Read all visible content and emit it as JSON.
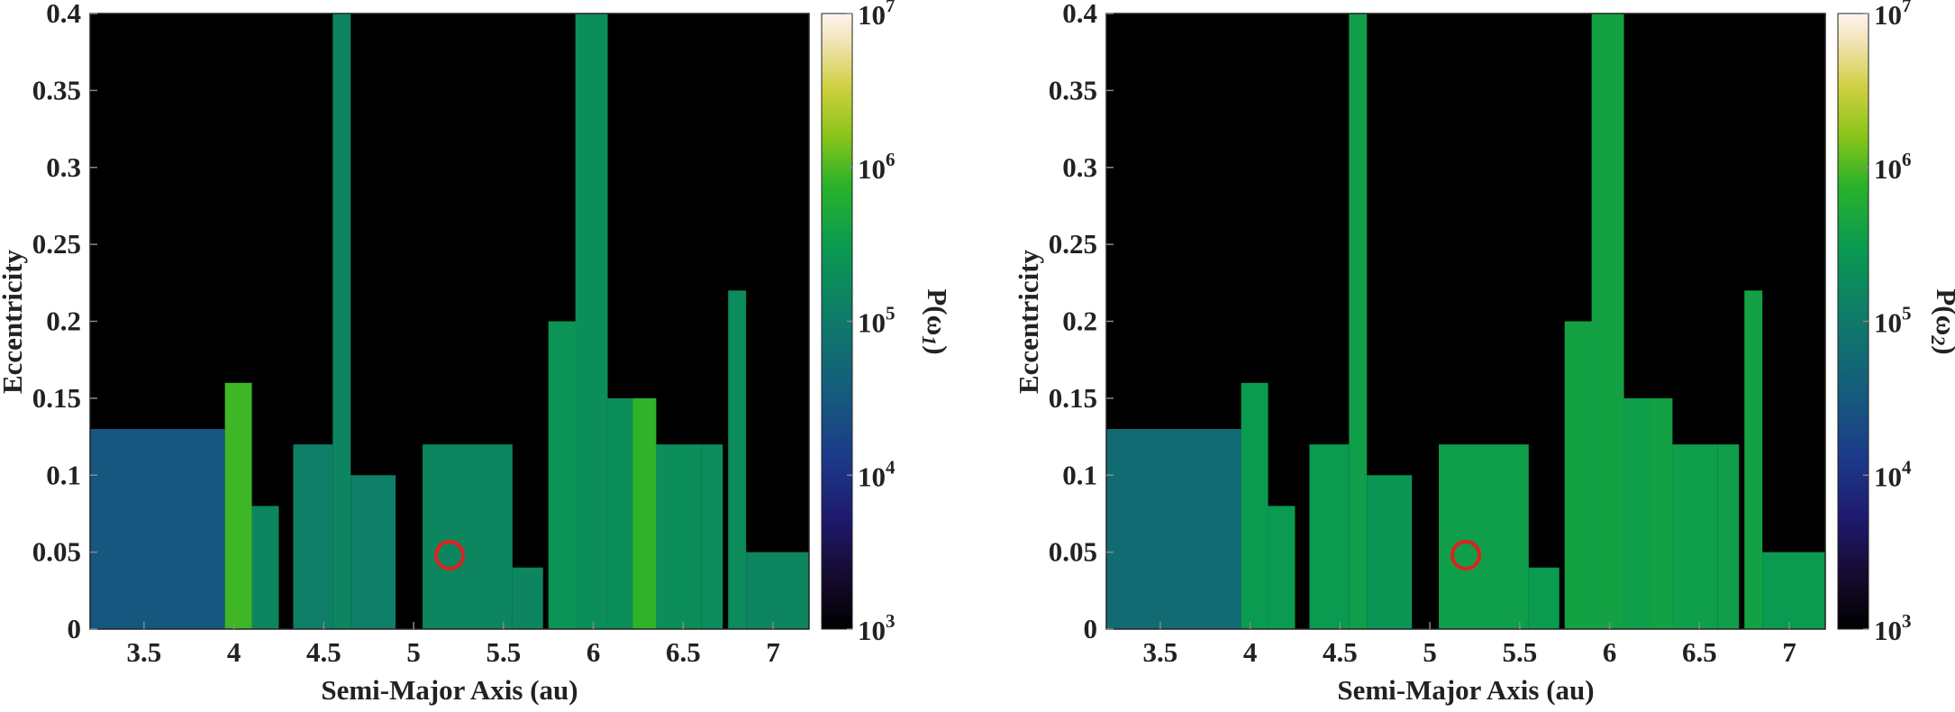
{
  "chart_data": [
    {
      "type": "heatmap",
      "xlabel": "Semi-Major Axis (au)",
      "ylabel": "Eccentricity",
      "xlim": [
        3.2,
        7.2
      ],
      "ylim": [
        0,
        0.4
      ],
      "xticks": [
        "3.5",
        "4",
        "4.5",
        "5",
        "5.5",
        "6",
        "6.5",
        "7"
      ],
      "xtick_values": [
        3.5,
        4,
        4.5,
        5,
        5.5,
        6,
        6.5,
        7
      ],
      "yticks": [
        "0",
        "0.05",
        "0.1",
        "0.15",
        "0.2",
        "0.25",
        "0.3",
        "0.35",
        "0.4"
      ],
      "ytick_values": [
        0,
        0.05,
        0.1,
        0.15,
        0.2,
        0.25,
        0.3,
        0.35,
        0.4
      ],
      "colorbar": {
        "label": "P(ω1)",
        "label_base": "P(ω",
        "label_sub": "1",
        "label_end": ")",
        "scale": "log",
        "range": [
          1000,
          10000000
        ],
        "ticks": [
          {
            "base": "10",
            "exp": "3",
            "value": 1000
          },
          {
            "base": "10",
            "exp": "4",
            "value": 10000
          },
          {
            "base": "10",
            "exp": "5",
            "value": 100000
          },
          {
            "base": "10",
            "exp": "6",
            "value": 1000000
          },
          {
            "base": "10",
            "exp": "7",
            "value": 10000000
          }
        ]
      },
      "marker": {
        "a": 5.2,
        "e": 0.048,
        "shape": "circle",
        "color": "#e02020"
      },
      "background_color": "#000000",
      "regions": [
        {
          "a0": 3.2,
          "a1": 3.95,
          "e_max": 0.13,
          "value": 30000
        },
        {
          "a0": 3.95,
          "a1": 4.1,
          "e_max": 0.16,
          "value": 900000
        },
        {
          "a0": 4.1,
          "a1": 4.25,
          "e_max": 0.08,
          "value": 150000
        },
        {
          "a0": 4.33,
          "a1": 4.55,
          "e_max": 0.12,
          "value": 120000
        },
        {
          "a0": 4.55,
          "a1": 4.65,
          "e_max": 0.4,
          "value": 150000
        },
        {
          "a0": 4.65,
          "a1": 4.9,
          "e_max": 0.1,
          "value": 120000
        },
        {
          "a0": 5.05,
          "a1": 5.55,
          "e_max": 0.12,
          "value": 150000
        },
        {
          "a0": 5.55,
          "a1": 5.72,
          "e_max": 0.04,
          "value": 150000
        },
        {
          "a0": 5.75,
          "a1": 5.98,
          "e_max": 0.2,
          "value": 250000
        },
        {
          "a0": 5.9,
          "a1": 6.08,
          "e_max": 0.4,
          "value": 200000
        },
        {
          "a0": 6.08,
          "a1": 6.22,
          "e_max": 0.15,
          "value": 200000
        },
        {
          "a0": 6.22,
          "a1": 6.35,
          "e_max": 0.15,
          "value": 800000
        },
        {
          "a0": 6.35,
          "a1": 6.6,
          "e_max": 0.12,
          "value": 200000
        },
        {
          "a0": 6.6,
          "a1": 6.72,
          "e_max": 0.12,
          "value": 180000
        },
        {
          "a0": 6.75,
          "a1": 6.85,
          "e_max": 0.22,
          "value": 180000
        },
        {
          "a0": 6.85,
          "a1": 7.2,
          "e_max": 0.05,
          "value": 150000
        }
      ]
    },
    {
      "type": "heatmap",
      "xlabel": "Semi-Major Axis (au)",
      "ylabel": "Eccentricity",
      "xlim": [
        3.2,
        7.2
      ],
      "ylim": [
        0,
        0.4
      ],
      "xticks": [
        "3.5",
        "4",
        "4.5",
        "5",
        "5.5",
        "6",
        "6.5",
        "7"
      ],
      "xtick_values": [
        3.5,
        4,
        4.5,
        5,
        5.5,
        6,
        6.5,
        7
      ],
      "yticks": [
        "0",
        "0.05",
        "0.1",
        "0.15",
        "0.2",
        "0.25",
        "0.3",
        "0.35",
        "0.4"
      ],
      "ytick_values": [
        0,
        0.05,
        0.1,
        0.15,
        0.2,
        0.25,
        0.3,
        0.35,
        0.4
      ],
      "colorbar": {
        "label": "P(ω2)",
        "label_base": "P(ω",
        "label_sub": "2",
        "label_end": ")",
        "scale": "log",
        "range": [
          1000,
          10000000
        ],
        "ticks": [
          {
            "base": "10",
            "exp": "3",
            "value": 1000
          },
          {
            "base": "10",
            "exp": "4",
            "value": 10000
          },
          {
            "base": "10",
            "exp": "5",
            "value": 100000
          },
          {
            "base": "10",
            "exp": "6",
            "value": 1000000
          },
          {
            "base": "10",
            "exp": "7",
            "value": 10000000
          }
        ]
      },
      "marker": {
        "a": 5.2,
        "e": 0.048,
        "shape": "circle",
        "color": "#e02020"
      },
      "background_color": "#000000",
      "regions": [
        {
          "a0": 3.2,
          "a1": 3.95,
          "e_max": 0.13,
          "value": 60000
        },
        {
          "a0": 3.95,
          "a1": 4.1,
          "e_max": 0.16,
          "value": 300000
        },
        {
          "a0": 4.1,
          "a1": 4.25,
          "e_max": 0.08,
          "value": 300000
        },
        {
          "a0": 4.33,
          "a1": 4.55,
          "e_max": 0.12,
          "value": 300000
        },
        {
          "a0": 4.55,
          "a1": 4.65,
          "e_max": 0.4,
          "value": 350000
        },
        {
          "a0": 4.65,
          "a1": 4.9,
          "e_max": 0.1,
          "value": 250000
        },
        {
          "a0": 5.05,
          "a1": 5.55,
          "e_max": 0.12,
          "value": 350000
        },
        {
          "a0": 5.55,
          "a1": 5.72,
          "e_max": 0.04,
          "value": 300000
        },
        {
          "a0": 5.75,
          "a1": 5.98,
          "e_max": 0.2,
          "value": 400000
        },
        {
          "a0": 5.9,
          "a1": 6.08,
          "e_max": 0.4,
          "value": 400000
        },
        {
          "a0": 6.08,
          "a1": 6.22,
          "e_max": 0.15,
          "value": 350000
        },
        {
          "a0": 6.22,
          "a1": 6.35,
          "e_max": 0.15,
          "value": 400000
        },
        {
          "a0": 6.35,
          "a1": 6.6,
          "e_max": 0.12,
          "value": 350000
        },
        {
          "a0": 6.6,
          "a1": 6.72,
          "e_max": 0.12,
          "value": 350000
        },
        {
          "a0": 6.75,
          "a1": 6.85,
          "e_max": 0.22,
          "value": 400000
        },
        {
          "a0": 6.85,
          "a1": 7.2,
          "e_max": 0.05,
          "value": 300000
        }
      ]
    }
  ]
}
